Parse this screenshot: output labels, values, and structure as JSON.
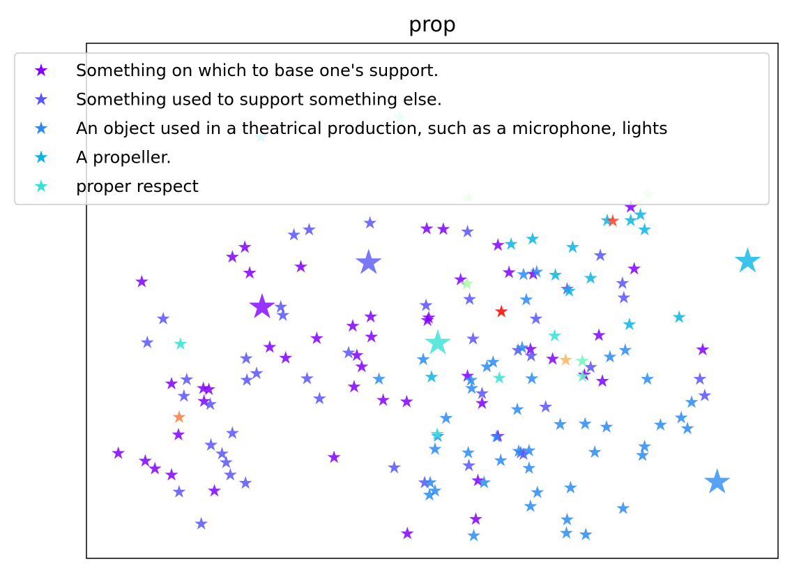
{
  "chart_data": {
    "type": "scatter",
    "title": "prop",
    "xlabel": "",
    "ylabel": "",
    "xlim": [
      0,
      1
    ],
    "ylim": [
      0,
      1
    ],
    "axes_ticks": false,
    "grid": false,
    "marker": "star",
    "legend": {
      "placement": "top-left",
      "entries": [
        {
          "label": "Something on which to base one's support.",
          "color": "#8000ff"
        },
        {
          "label": "Something used to support something else.",
          "color": "#5a55f9"
        },
        {
          "label": "An object used in a theatrical production, such as a microphone, lights",
          "color": "#2c8bf3"
        },
        {
          "label": "A propeller.",
          "color": "#0ab5e6"
        },
        {
          "label": "proper respect",
          "color": "#38e1d4"
        }
      ]
    },
    "series": [
      {
        "color": "#8000ff",
        "highlight": [
          [
            0.254,
            0.488
          ]
        ],
        "points": [
          [
            0.211,
            0.585
          ],
          [
            0.229,
            0.604
          ],
          [
            0.31,
            0.566
          ],
          [
            0.236,
            0.554
          ],
          [
            0.08,
            0.537
          ],
          [
            0.123,
            0.339
          ],
          [
            0.17,
            0.305
          ],
          [
            0.123,
            0.162
          ],
          [
            0.085,
            0.189
          ],
          [
            0.099,
            0.174
          ],
          [
            0.046,
            0.204
          ],
          [
            0.133,
            0.24
          ],
          [
            0.177,
            0.328
          ],
          [
            0.169,
            0.33
          ],
          [
            0.185,
            0.131
          ],
          [
            0.265,
            0.41
          ],
          [
            0.288,
            0.389
          ],
          [
            0.333,
            0.427
          ],
          [
            0.385,
            0.451
          ],
          [
            0.391,
            0.394
          ],
          [
            0.398,
            0.372
          ],
          [
            0.411,
            0.469
          ],
          [
            0.412,
            0.43
          ],
          [
            0.429,
            0.307
          ],
          [
            0.358,
            0.196
          ],
          [
            0.387,
            0.333
          ],
          [
            0.463,
            0.304
          ],
          [
            0.492,
            0.64
          ],
          [
            0.495,
            0.467
          ],
          [
            0.493,
            0.462
          ],
          [
            0.516,
            0.639
          ],
          [
            0.541,
            0.541
          ],
          [
            0.595,
            0.608
          ],
          [
            0.611,
            0.555
          ],
          [
            0.646,
            0.552
          ],
          [
            0.551,
            0.354
          ],
          [
            0.572,
            0.301
          ],
          [
            0.595,
            0.237
          ],
          [
            0.563,
            0.076
          ],
          [
            0.464,
            0.048
          ],
          [
            0.566,
            0.151
          ],
          [
            0.642,
            0.406
          ],
          [
            0.674,
            0.387
          ],
          [
            0.72,
            0.356
          ],
          [
            0.746,
            0.344
          ],
          [
            0.787,
            0.682
          ],
          [
            0.792,
            0.562
          ],
          [
            0.741,
            0.433
          ],
          [
            0.891,
            0.405
          ]
        ]
      },
      {
        "color": "#5a55f9",
        "highlight": [
          [
            0.408,
            0.574
          ]
        ],
        "points": [
          [
            0.111,
            0.465
          ],
          [
            0.088,
            0.419
          ],
          [
            0.145,
            0.347
          ],
          [
            0.141,
            0.315
          ],
          [
            0.179,
            0.299
          ],
          [
            0.211,
            0.243
          ],
          [
            0.18,
            0.22
          ],
          [
            0.196,
            0.203
          ],
          [
            0.202,
            0.186
          ],
          [
            0.208,
            0.162
          ],
          [
            0.23,
            0.146
          ],
          [
            0.134,
            0.129
          ],
          [
            0.166,
            0.067
          ],
          [
            0.231,
            0.388
          ],
          [
            0.232,
            0.346
          ],
          [
            0.246,
            0.359
          ],
          [
            0.281,
            0.488
          ],
          [
            0.284,
            0.472
          ],
          [
            0.3,
            0.628
          ],
          [
            0.322,
            0.638
          ],
          [
            0.319,
            0.349
          ],
          [
            0.337,
            0.31
          ],
          [
            0.379,
            0.399
          ],
          [
            0.41,
            0.651
          ],
          [
            0.491,
            0.491
          ],
          [
            0.551,
            0.634
          ],
          [
            0.554,
            0.503
          ],
          [
            0.559,
            0.426
          ],
          [
            0.572,
            0.32
          ],
          [
            0.624,
            0.404
          ],
          [
            0.643,
            0.393
          ],
          [
            0.743,
            0.588
          ],
          [
            0.775,
            0.534
          ],
          [
            0.729,
            0.371
          ],
          [
            0.664,
            0.294
          ],
          [
            0.628,
            0.205
          ],
          [
            0.695,
            0.523
          ],
          [
            0.445,
            0.176
          ],
          [
            0.489,
            0.147
          ],
          [
            0.553,
            0.18
          ],
          [
            0.632,
            0.202
          ],
          [
            0.777,
            0.506
          ],
          [
            0.887,
            0.348
          ],
          [
            0.894,
            0.316
          ],
          [
            0.65,
            0.465
          ]
        ]
      },
      {
        "color": "#2c8bf3",
        "highlight": [
          [
            0.912,
            0.148
          ]
        ],
        "points": [
          [
            0.423,
            0.348
          ],
          [
            0.487,
            0.386
          ],
          [
            0.556,
            0.346
          ],
          [
            0.579,
            0.372
          ],
          [
            0.588,
            0.381
          ],
          [
            0.63,
            0.409
          ],
          [
            0.632,
            0.551
          ],
          [
            0.651,
            0.556
          ],
          [
            0.636,
            0.502
          ],
          [
            0.52,
            0.272
          ],
          [
            0.508,
            0.237
          ],
          [
            0.557,
            0.33
          ],
          [
            0.593,
            0.236
          ],
          [
            0.623,
            0.289
          ],
          [
            0.644,
            0.349
          ],
          [
            0.685,
            0.26
          ],
          [
            0.721,
            0.261
          ],
          [
            0.752,
            0.255
          ],
          [
            0.83,
            0.259
          ],
          [
            0.86,
            0.273
          ],
          [
            0.869,
            0.252
          ],
          [
            0.875,
            0.303
          ],
          [
            0.757,
            0.391
          ],
          [
            0.779,
            0.404
          ],
          [
            0.811,
            0.348
          ],
          [
            0.625,
            0.208
          ],
          [
            0.64,
            0.209
          ],
          [
            0.599,
            0.19
          ],
          [
            0.575,
            0.147
          ],
          [
            0.504,
            0.131
          ],
          [
            0.497,
            0.147
          ],
          [
            0.496,
            0.123
          ],
          [
            0.64,
            0.175
          ],
          [
            0.7,
            0.137
          ],
          [
            0.652,
            0.128
          ],
          [
            0.642,
            0.101
          ],
          [
            0.695,
            0.075
          ],
          [
            0.722,
            0.046
          ],
          [
            0.776,
            0.097
          ],
          [
            0.56,
            0.044
          ],
          [
            0.807,
            0.217
          ],
          [
            0.735,
            0.206
          ],
          [
            0.804,
            0.2
          ],
          [
            0.552,
            0.205
          ],
          [
            0.694,
            0.049
          ],
          [
            0.504,
            0.212
          ]
        ]
      },
      {
        "color": "#0ab5e6",
        "highlight": [
          [
            0.956,
            0.577
          ]
        ],
        "points": [
          [
            0.614,
            0.61
          ],
          [
            0.645,
            0.62
          ],
          [
            0.703,
            0.604
          ],
          [
            0.678,
            0.55
          ],
          [
            0.698,
            0.519
          ],
          [
            0.729,
            0.544
          ],
          [
            0.785,
            0.454
          ],
          [
            0.857,
            0.468
          ],
          [
            0.787,
            0.656
          ],
          [
            0.753,
            0.656
          ],
          [
            0.807,
            0.638
          ],
          [
            0.801,
            0.667
          ],
          [
            0.499,
            0.352
          ]
        ]
      },
      {
        "color": "#38e1d4",
        "highlight": [
          [
            0.508,
            0.418
          ]
        ],
        "points": [
          [
            0.136,
            0.416
          ],
          [
            0.677,
            0.432
          ],
          [
            0.597,
            0.35
          ],
          [
            0.507,
            0.241
          ],
          [
            0.252,
            0.818
          ]
        ]
      },
      {
        "color": "#6cf7c0",
        "points": [
          [
            0.717,
            0.353
          ],
          [
            0.717,
            0.383
          ],
          [
            0.453,
            0.856
          ]
        ]
      },
      {
        "color": "#a5fda1",
        "points": [
          [
            0.55,
            0.533
          ],
          [
            0.553,
            0.701
          ],
          [
            0.812,
            0.707
          ]
        ]
      },
      {
        "color": "#ffb461",
        "points": [
          [
            0.693,
            0.385
          ]
        ]
      },
      {
        "color": "#ff7b41",
        "points": [
          [
            0.134,
            0.274
          ]
        ]
      },
      {
        "color": "#ff3e22",
        "points": [
          [
            0.761,
            0.655
          ]
        ]
      },
      {
        "color": "#ff0000",
        "points": [
          [
            0.6,
            0.479
          ]
        ]
      }
    ]
  }
}
